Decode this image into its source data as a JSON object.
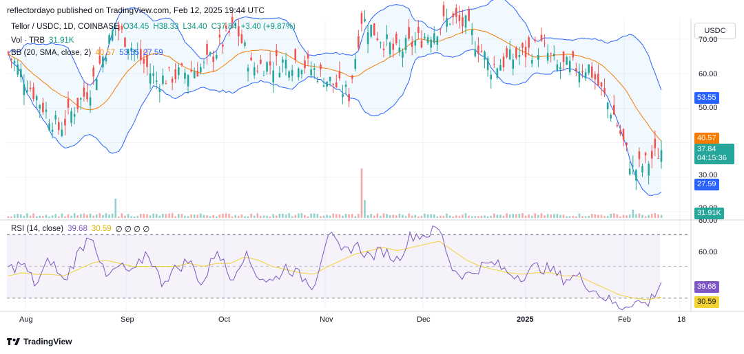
{
  "header": {
    "published": "reflectordayo published on TradingView.com, Feb 12, 2025 19:44 UTC"
  },
  "legend": {
    "symbol": "Tellor / USDC, 1D, COINBASE",
    "o": "O34.45",
    "h": "H38.33",
    "l": "L34.40",
    "c": "C37.84",
    "chg": "+3.40 (+9.87%)",
    "vol_label": "Vol · TRB",
    "vol_value": "31.91K",
    "bb_label": "BB (20, SMA, close, 2)",
    "bb_mid": "40.57",
    "bb_up": "53.55",
    "bb_low": "27.59",
    "rsi_label": "RSI (14, close)",
    "rsi_val": "39.68",
    "rsi_ma": "30.59",
    "rsi_extra": "∅ ∅ ∅ ∅"
  },
  "currency_button": "USDC",
  "price_axis": [
    "70.00",
    "60.00",
    "50.00",
    "30.00",
    "20.00"
  ],
  "rsi_axis": [
    "80.00",
    "60.00"
  ],
  "tags": {
    "upper": "53.55",
    "mid": "40.57",
    "close": "37.84",
    "countdown": "04:15:36",
    "lower": "27.59",
    "volume": "31.91K",
    "rsi": "39.68",
    "rsi_ma": "30.59"
  },
  "x_labels": [
    "Aug",
    "Sep",
    "Oct",
    "Nov",
    "Dec",
    "2025",
    "Feb",
    "18"
  ],
  "footer": {
    "brand": "TradingView"
  },
  "colors": {
    "up": "#26a69a",
    "down": "#ef5350",
    "bb_band": "#2962ff",
    "bb_mid": "#f57c00",
    "rsi": "#7e57c2",
    "rsi_ma": "#f2d335"
  },
  "chart_data": [
    {
      "type": "candlestick",
      "pair": "TRB/USDC",
      "timeframe": "1D",
      "x_range": [
        "2024-07-20",
        "2025-02-12"
      ],
      "ylim": [
        18,
        76
      ],
      "key_points": [
        {
          "date": "2024-07-20",
          "close": 66
        },
        {
          "date": "2024-08-01",
          "close": 49
        },
        {
          "date": "2024-08-05",
          "close": 44
        },
        {
          "date": "2024-08-15",
          "close": 56
        },
        {
          "date": "2024-08-23",
          "close": 74
        },
        {
          "date": "2024-09-05",
          "close": 58
        },
        {
          "date": "2024-09-20",
          "close": 62
        },
        {
          "date": "2024-09-30",
          "close": 74
        },
        {
          "date": "2024-10-05",
          "close": 62
        },
        {
          "date": "2024-10-20",
          "close": 64
        },
        {
          "date": "2024-11-05",
          "close": 54
        },
        {
          "date": "2024-11-09",
          "close": 76
        },
        {
          "date": "2024-11-20",
          "close": 66
        },
        {
          "date": "2024-12-01",
          "close": 72
        },
        {
          "date": "2024-12-07",
          "close": 76
        },
        {
          "date": "2024-12-12",
          "close": 74
        },
        {
          "date": "2024-12-20",
          "close": 62
        },
        {
          "date": "2025-01-05",
          "close": 68
        },
        {
          "date": "2025-01-10",
          "close": 62
        },
        {
          "date": "2025-01-20",
          "close": 62
        },
        {
          "date": "2025-01-28",
          "close": 48
        },
        {
          "date": "2025-02-03",
          "close": 32
        },
        {
          "date": "2025-02-07",
          "close": 34
        },
        {
          "date": "2025-02-12",
          "close": 37.84
        }
      ]
    },
    {
      "type": "line",
      "title": "RSI (14, close)",
      "ylim": [
        20,
        80
      ],
      "series": [
        {
          "name": "RSI",
          "values": [
            48,
            52,
            38,
            55,
            40,
            58,
            72,
            42,
            50,
            45,
            60,
            40,
            48,
            54,
            38,
            62,
            42,
            58,
            44,
            40,
            50,
            44,
            38,
            72,
            58,
            64,
            56,
            60,
            54,
            70,
            70,
            74,
            48,
            44,
            50,
            52,
            46,
            44,
            50,
            48,
            42,
            44,
            36,
            30,
            24,
            28,
            26,
            40
          ]
        },
        {
          "name": "MA",
          "values": [
            44,
            46,
            45,
            45,
            44,
            48,
            52,
            54,
            52,
            50,
            50,
            50,
            50,
            52,
            50,
            52,
            52,
            56,
            54,
            50,
            48,
            46,
            45,
            50,
            54,
            58,
            60,
            62,
            60,
            62,
            64,
            66,
            60,
            54,
            50,
            48,
            46,
            45,
            46,
            46,
            44,
            44,
            40,
            36,
            32,
            30,
            29,
            30.59
          ]
        }
      ]
    }
  ]
}
